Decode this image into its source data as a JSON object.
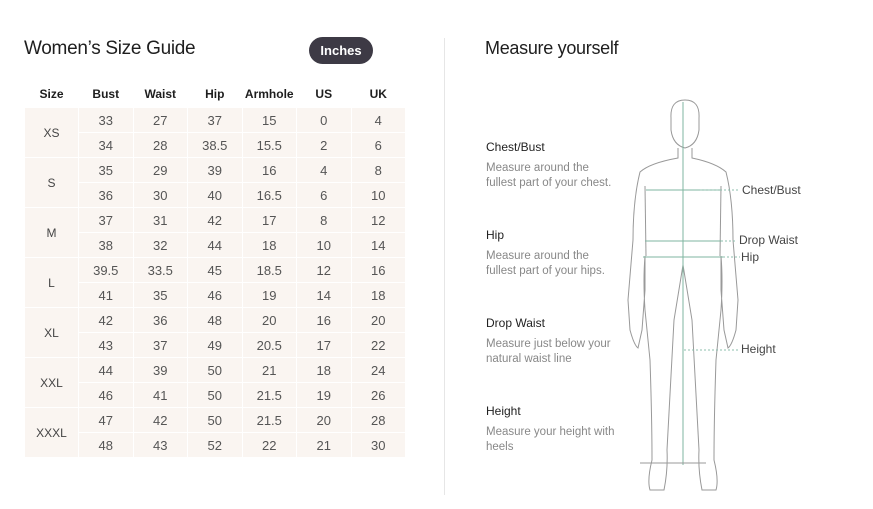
{
  "left": {
    "title": "Women’s Size Guide",
    "unit_toggle": "Inches",
    "columns": [
      "Size",
      "Bust",
      "Waist",
      "Hip",
      "Armhole",
      "US",
      "UK"
    ],
    "rows": [
      {
        "size": "XS",
        "sub": [
          [
            "33",
            "27",
            "37",
            "15",
            "0",
            "4"
          ],
          [
            "34",
            "28",
            "38.5",
            "15.5",
            "2",
            "6"
          ]
        ]
      },
      {
        "size": "S",
        "sub": [
          [
            "35",
            "29",
            "39",
            "16",
            "4",
            "8"
          ],
          [
            "36",
            "30",
            "40",
            "16.5",
            "6",
            "10"
          ]
        ]
      },
      {
        "size": "M",
        "sub": [
          [
            "37",
            "31",
            "42",
            "17",
            "8",
            "12"
          ],
          [
            "38",
            "32",
            "44",
            "18",
            "10",
            "14"
          ]
        ]
      },
      {
        "size": "L",
        "sub": [
          [
            "39.5",
            "33.5",
            "45",
            "18.5",
            "12",
            "16"
          ],
          [
            "41",
            "35",
            "46",
            "19",
            "14",
            "18"
          ]
        ]
      },
      {
        "size": "XL",
        "sub": [
          [
            "42",
            "36",
            "48",
            "20",
            "16",
            "20"
          ],
          [
            "43",
            "37",
            "49",
            "20.5",
            "17",
            "22"
          ]
        ]
      },
      {
        "size": "XXL",
        "sub": [
          [
            "44",
            "39",
            "50",
            "21",
            "18",
            "24"
          ],
          [
            "46",
            "41",
            "50",
            "21.5",
            "19",
            "26"
          ]
        ]
      },
      {
        "size": "XXXL",
        "sub": [
          [
            "47",
            "42",
            "50",
            "21.5",
            "20",
            "28"
          ],
          [
            "48",
            "43",
            "52",
            "22",
            "21",
            "30"
          ]
        ]
      }
    ]
  },
  "right": {
    "title": "Measure yourself",
    "sections": [
      {
        "heading": "Chest/Bust",
        "text": "Measure around the fullest part of your chest."
      },
      {
        "heading": "Hip",
        "text": "Measure around the fullest part of your hips."
      },
      {
        "heading": "Drop Waist",
        "text": "Measure just below your natural waist line"
      },
      {
        "heading": "Height",
        "text": "Measure your height with heels"
      }
    ],
    "figure_labels": {
      "chest": "Chest/Bust",
      "drop_waist": "Drop Waist",
      "hip": "Hip",
      "height": "Height"
    }
  },
  "colors": {
    "toggle_bg": "#3d3a45",
    "table_bg": "#faf5f1",
    "measure_line": "#7fb5a0"
  }
}
